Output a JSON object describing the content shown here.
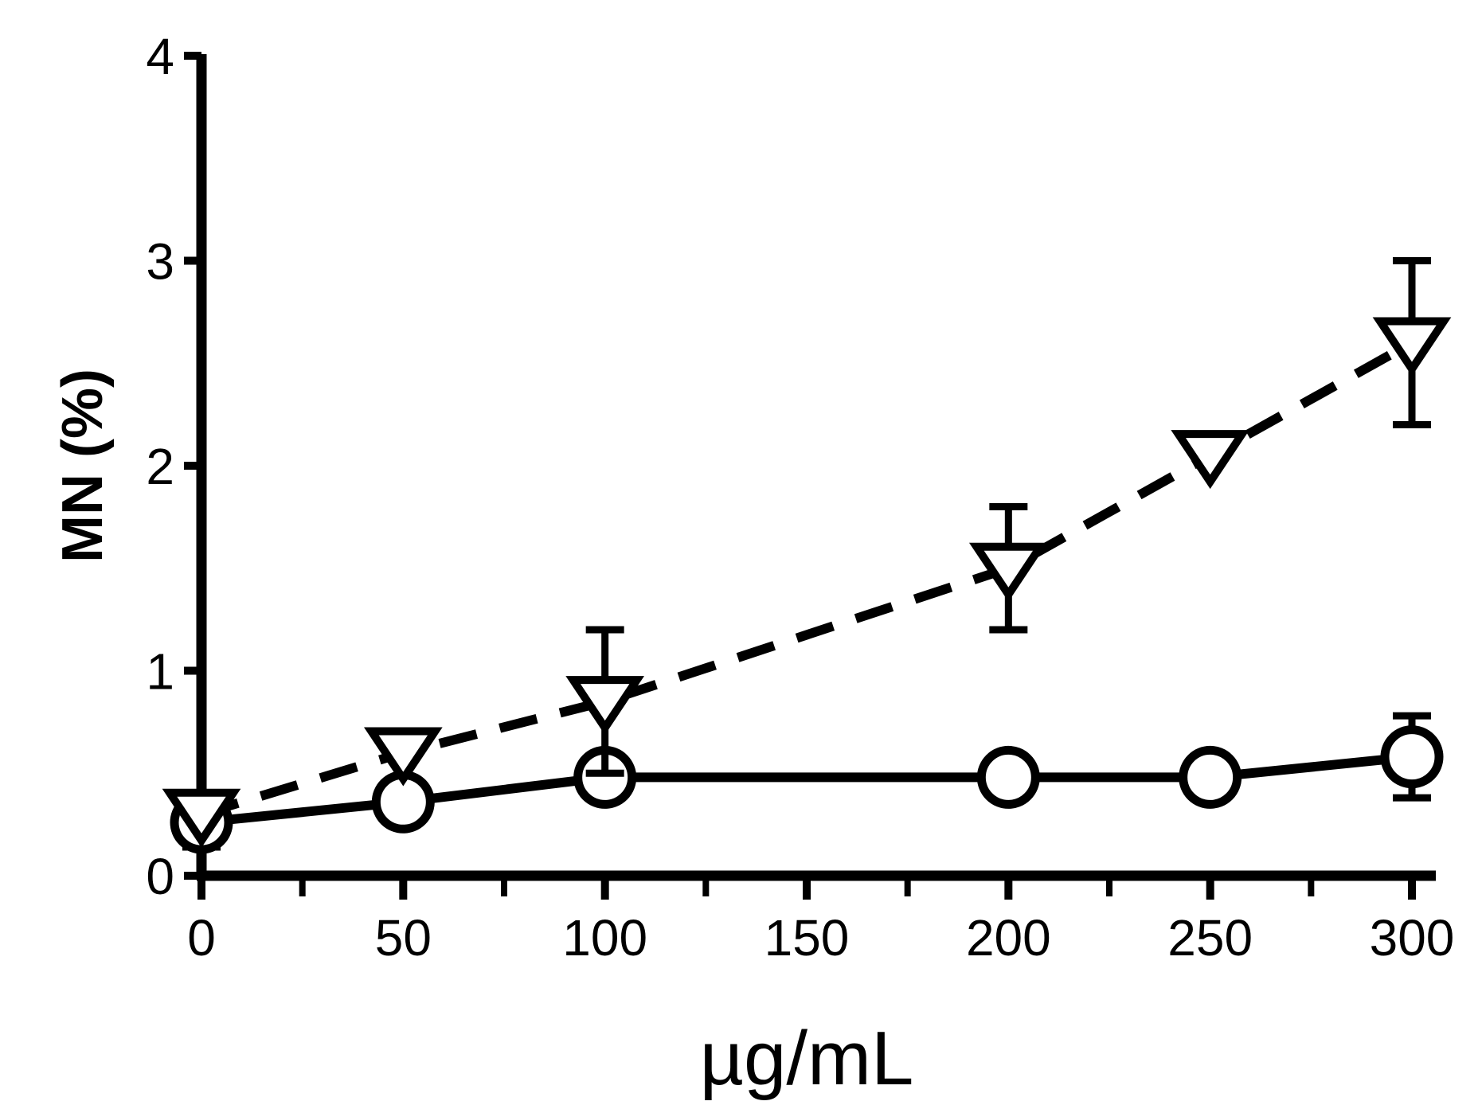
{
  "chart_data": {
    "type": "line",
    "title": "",
    "xlabel": "µg/mL",
    "ylabel": "MN (%)",
    "xlim": [
      0,
      300
    ],
    "ylim": [
      0,
      4
    ],
    "x_ticks": [
      0,
      50,
      100,
      150,
      200,
      250,
      300
    ],
    "x_tick_labels": [
      "0",
      "50",
      "100",
      "150",
      "200",
      "250",
      "300"
    ],
    "y_ticks": [
      0,
      1,
      2,
      3,
      4
    ],
    "y_tick_labels": [
      "0",
      "1",
      "2",
      "3",
      "4"
    ],
    "grid": false,
    "series": [
      {
        "marker": "circle",
        "line_style": "solid",
        "color": "#000000",
        "points": [
          {
            "x": 0,
            "y": 0.26,
            "err": 0.12
          },
          {
            "x": 50,
            "y": 0.36,
            "err": 0
          },
          {
            "x": 100,
            "y": 0.48,
            "err": 0
          },
          {
            "x": 200,
            "y": 0.48,
            "err": 0
          },
          {
            "x": 250,
            "y": 0.48,
            "err": 0
          },
          {
            "x": 300,
            "y": 0.58,
            "err": 0.2
          }
        ]
      },
      {
        "marker": "triangle-down",
        "line_style": "dashed",
        "color": "#000000",
        "points": [
          {
            "x": 0,
            "y": 0.3,
            "err": 0
          },
          {
            "x": 50,
            "y": 0.6,
            "err": 0
          },
          {
            "x": 100,
            "y": 0.85,
            "err": 0.35
          },
          {
            "x": 200,
            "y": 1.5,
            "err": 0.3
          },
          {
            "x": 250,
            "y": 2.05,
            "err": 0
          },
          {
            "x": 300,
            "y": 2.6,
            "err": 0.4
          }
        ]
      }
    ]
  }
}
